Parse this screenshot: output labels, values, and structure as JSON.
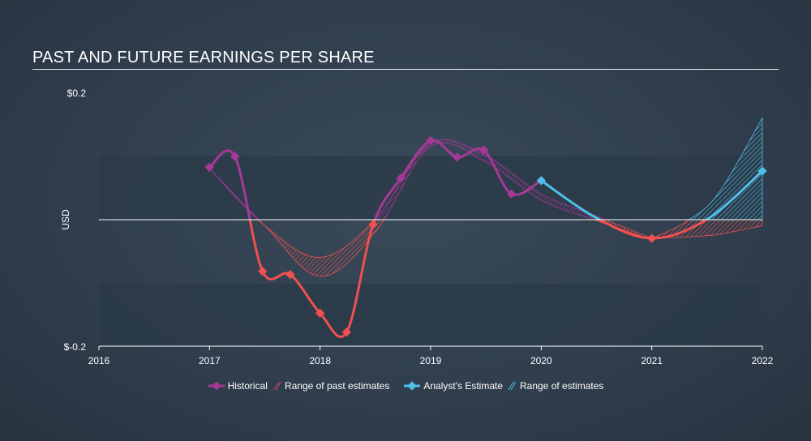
{
  "title": "PAST AND FUTURE EARNINGS PER SHARE",
  "colors": {
    "historical": "#a53996",
    "negative": "#f0504f",
    "estimate": "#4fc0e8",
    "axis": "#ffffff",
    "band": "#2b3948"
  },
  "legend": {
    "historical": "Historical",
    "past_range": "Range of past estimates",
    "estimate": "Analyst's Estimate",
    "future_range": "Range of estimates"
  },
  "chart_data": {
    "type": "line",
    "ylabel": "USD",
    "ytick_labels": [
      {
        "value": 0.2,
        "label": "$0.2"
      },
      {
        "value": -0.2,
        "label": "$-0.2"
      }
    ],
    "xticks": [
      2016,
      2017,
      2018,
      2019,
      2020,
      2021,
      2022
    ],
    "xlim": [
      2016,
      2022
    ],
    "ylim": [
      -0.2,
      0.2
    ],
    "series": [
      {
        "name": "Historical",
        "points": [
          [
            2017.0,
            0.082
          ],
          [
            2017.23,
            0.099
          ],
          [
            2017.48,
            -0.082
          ],
          [
            2017.73,
            -0.087
          ],
          [
            2018.0,
            -0.148
          ],
          [
            2018.24,
            -0.178
          ],
          [
            2018.48,
            -0.008
          ],
          [
            2018.73,
            0.065
          ],
          [
            2019.0,
            0.124
          ],
          [
            2019.24,
            0.098
          ],
          [
            2019.48,
            0.109
          ],
          [
            2019.73,
            0.04
          ],
          [
            2020.0,
            0.061
          ]
        ]
      },
      {
        "name": "Analyst's Estimate",
        "points": [
          [
            2020.0,
            0.061
          ],
          [
            2020.5,
            0.002
          ],
          [
            2021.0,
            -0.03
          ],
          [
            2021.5,
            0.0
          ],
          [
            2022.0,
            0.076
          ]
        ]
      }
    ],
    "past_estimate_range": {
      "x": [
        2017.0,
        2017.5,
        2018.0,
        2018.5,
        2019.0,
        2019.5,
        2020.0,
        2020.5,
        2021.0
      ],
      "high": [
        0.08,
        -0.01,
        -0.06,
        0.0,
        0.12,
        0.1,
        0.04,
        0.005,
        -0.03
      ],
      "low": [
        0.08,
        -0.01,
        -0.09,
        -0.02,
        0.115,
        0.09,
        0.03,
        -0.002,
        -0.032
      ]
    },
    "future_estimate_range": {
      "x": [
        2021.0,
        2021.3,
        2021.6,
        2022.0
      ],
      "high": [
        -0.03,
        -0.005,
        0.04,
        0.16
      ],
      "low": [
        -0.03,
        -0.028,
        -0.024,
        -0.01
      ]
    }
  }
}
